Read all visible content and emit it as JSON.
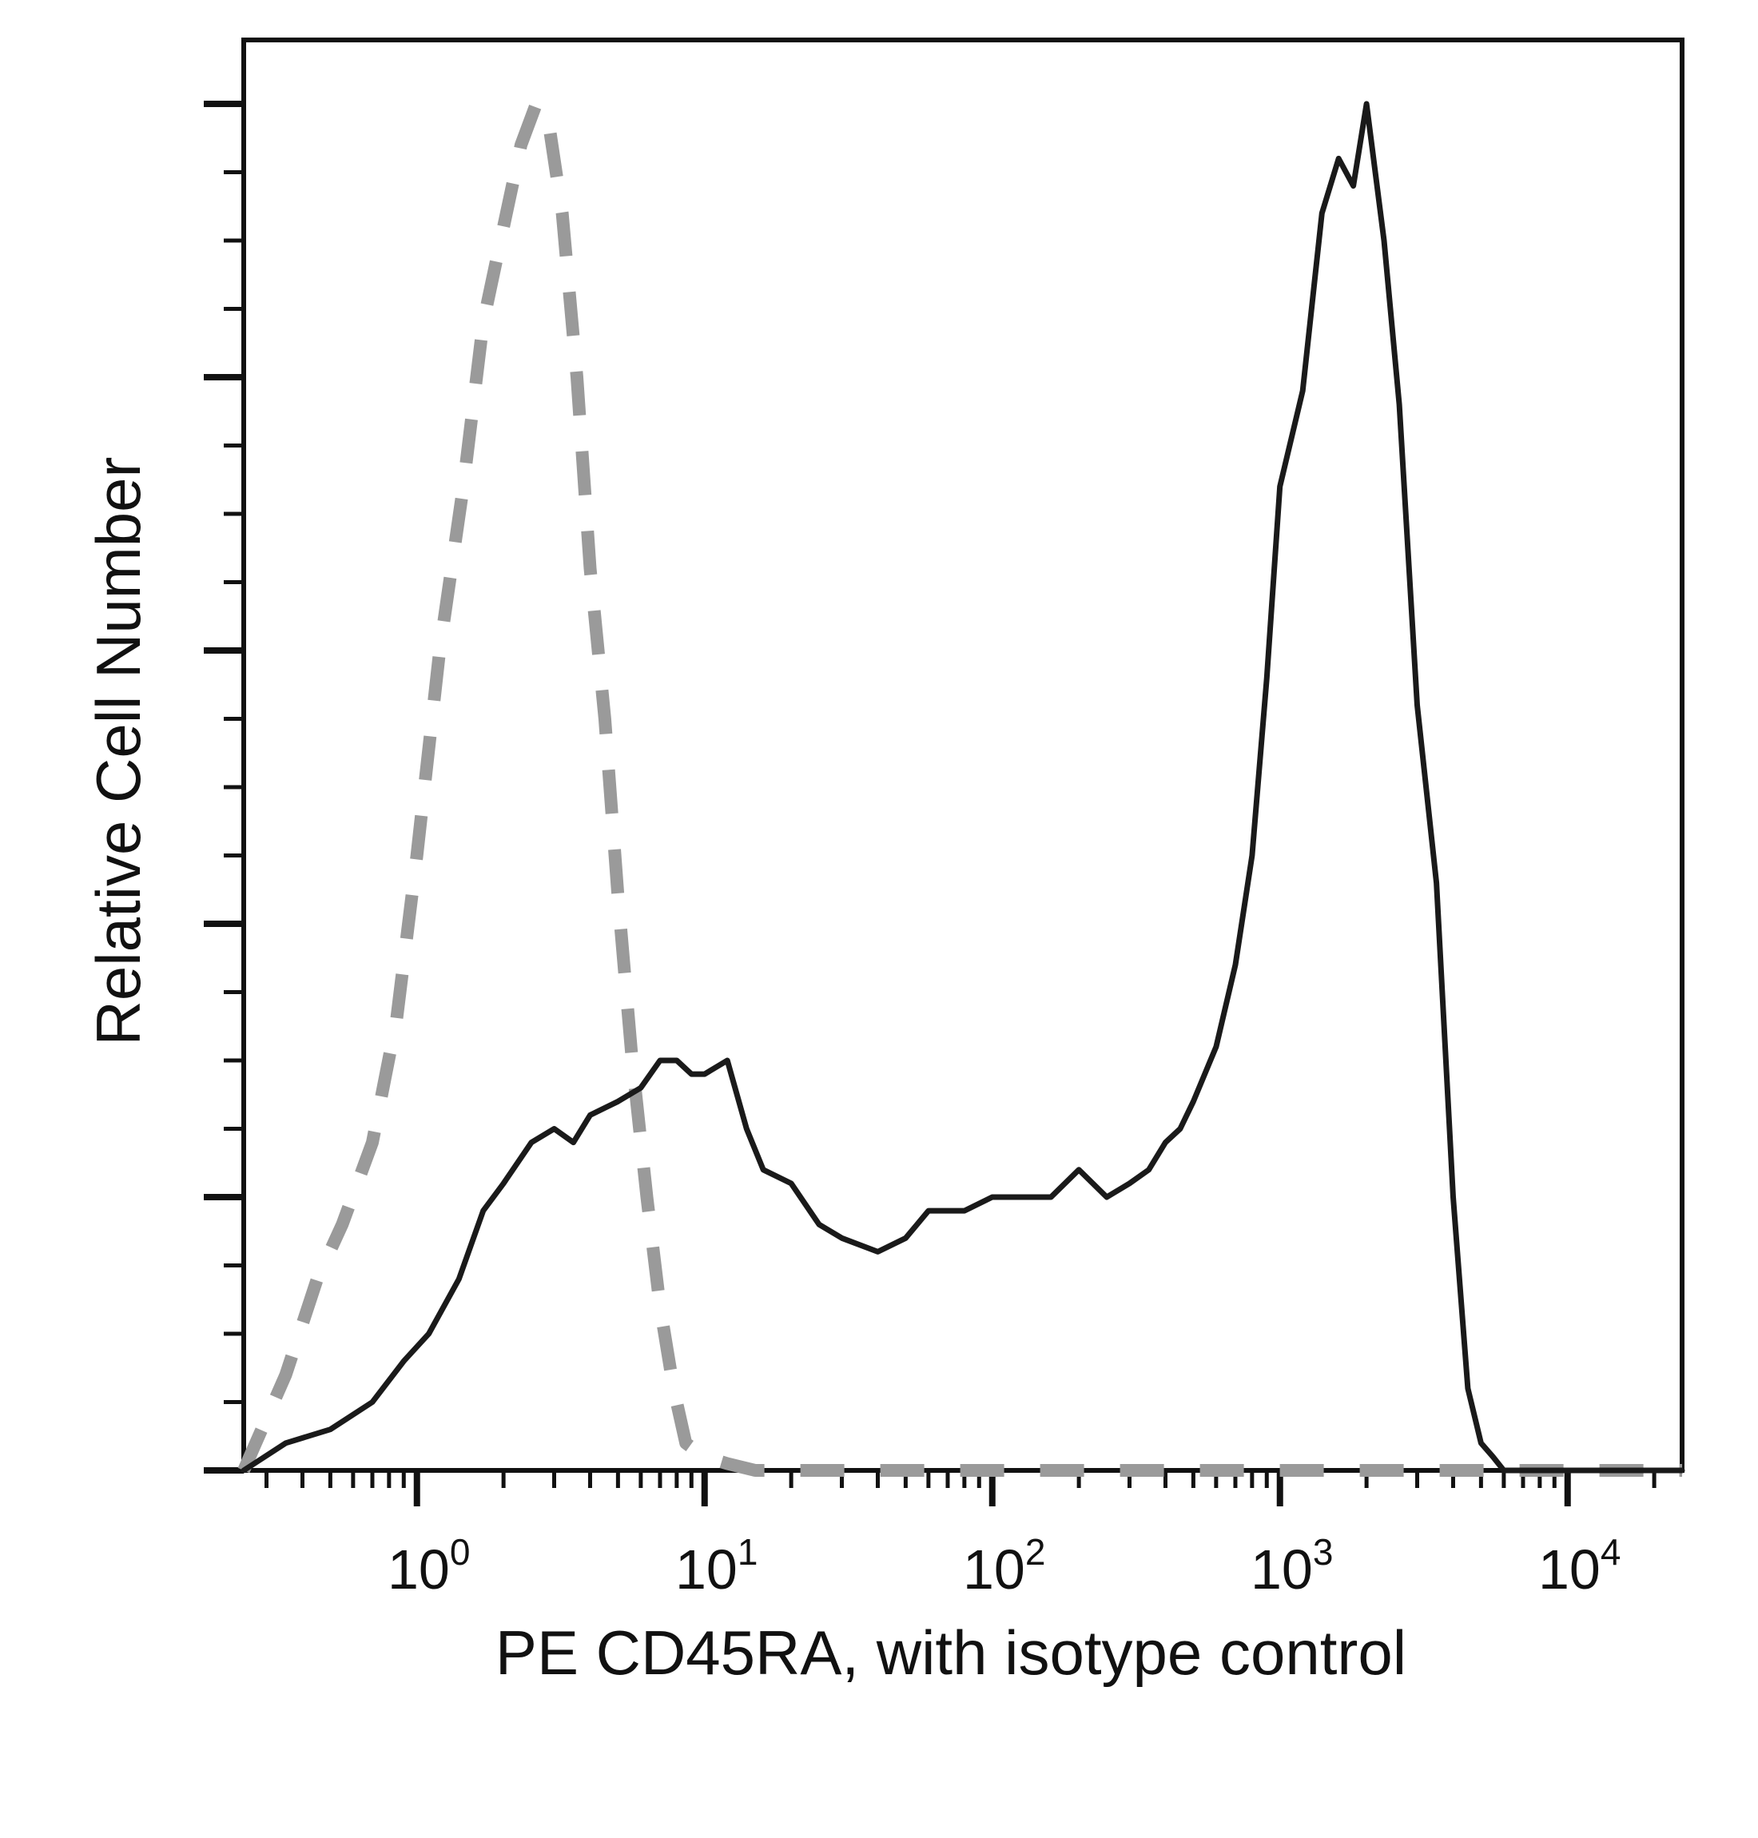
{
  "chart_data": {
    "type": "line",
    "title": "",
    "xlabel": "PE CD45RA, with isotype control",
    "ylabel": "Relative Cell Number",
    "x_scale": "log",
    "xlim": [
      0.25,
      25000
    ],
    "ylim": [
      0,
      1.05
    ],
    "x_ticks": [
      {
        "base": "10",
        "exp": "0",
        "value": 1
      },
      {
        "base": "10",
        "exp": "1",
        "value": 10
      },
      {
        "base": "10",
        "exp": "2",
        "value": 100
      },
      {
        "base": "10",
        "exp": "3",
        "value": 1000
      },
      {
        "base": "10",
        "exp": "4",
        "value": 10000
      }
    ],
    "y_major_ticks": [
      0,
      0.2,
      0.4,
      0.6,
      0.8,
      1.0
    ],
    "y_tick_labels_shown": false,
    "grid": false,
    "legend": "none",
    "series": [
      {
        "style": "dashed",
        "color": "#9a9a9a",
        "x": [
          0.25,
          0.35,
          0.45,
          0.55,
          0.7,
          0.85,
          1.0,
          1.2,
          1.45,
          1.7,
          2.0,
          2.3,
          2.6,
          2.9,
          3.2,
          3.6,
          4.0,
          4.5,
          5.0,
          5.6,
          6.3,
          7.0,
          7.8,
          8.6,
          10,
          12,
          15,
          30,
          100,
          300,
          1000,
          3000,
          6000,
          25000
        ],
        "y": [
          0.0,
          0.07,
          0.14,
          0.18,
          0.24,
          0.33,
          0.45,
          0.6,
          0.72,
          0.84,
          0.91,
          0.97,
          1.0,
          0.98,
          0.92,
          0.8,
          0.66,
          0.55,
          0.42,
          0.3,
          0.2,
          0.12,
          0.06,
          0.02,
          0.01,
          0.005,
          0.0,
          0.0,
          0.0,
          0.0,
          0.0,
          0.0,
          0.0,
          0.0
        ]
      },
      {
        "style": "solid",
        "color": "#1a1a1a",
        "x": [
          0.25,
          0.35,
          0.5,
          0.7,
          0.9,
          1.1,
          1.4,
          1.7,
          2.0,
          2.5,
          3.0,
          3.5,
          4.0,
          5.0,
          6.0,
          7.0,
          8.0,
          9.0,
          10,
          12,
          14,
          16,
          20,
          25,
          30,
          40,
          50,
          60,
          80,
          100,
          130,
          160,
          200,
          250,
          300,
          350,
          400,
          450,
          500,
          600,
          700,
          800,
          900,
          1000,
          1200,
          1400,
          1600,
          1800,
          2000,
          2300,
          2600,
          3000,
          3500,
          4000,
          4500,
          5000,
          5500,
          6000,
          8000,
          25000
        ],
        "y": [
          0.0,
          0.02,
          0.03,
          0.05,
          0.08,
          0.1,
          0.14,
          0.19,
          0.21,
          0.24,
          0.25,
          0.24,
          0.26,
          0.27,
          0.28,
          0.3,
          0.3,
          0.29,
          0.29,
          0.3,
          0.25,
          0.22,
          0.21,
          0.18,
          0.17,
          0.16,
          0.17,
          0.19,
          0.19,
          0.2,
          0.2,
          0.2,
          0.22,
          0.2,
          0.21,
          0.22,
          0.24,
          0.25,
          0.27,
          0.31,
          0.37,
          0.45,
          0.58,
          0.72,
          0.79,
          0.92,
          0.96,
          0.94,
          1.0,
          0.9,
          0.78,
          0.56,
          0.43,
          0.2,
          0.06,
          0.02,
          0.01,
          0.0,
          0.0,
          0.0
        ]
      }
    ]
  }
}
